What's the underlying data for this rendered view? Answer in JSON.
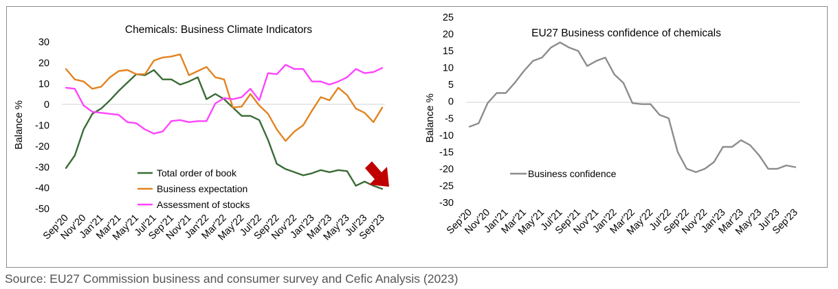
{
  "source_note": "Source: EU27 Commission business and consumer survey and Cefic Analysis (2023)",
  "chart_data": [
    {
      "type": "line",
      "title": "Chemicals: Business Climate Indicators",
      "xlabel": "",
      "ylabel": "Balance %",
      "ylim": [
        -50,
        30
      ],
      "yticks": [
        30,
        20,
        10,
        0,
        -10,
        -20,
        -30,
        -40,
        -50
      ],
      "grid": false,
      "legend_position": "bottom-center",
      "categories": [
        "Sep'20",
        "Oct'20",
        "Nov'20",
        "Dec'20",
        "Jan'21",
        "Feb'21",
        "Mar'21",
        "Apr'21",
        "May'21",
        "Jun'21",
        "Jul'21",
        "Aug'21",
        "Sep'21",
        "Oct'21",
        "Nov'21",
        "Dec'21",
        "Jan'22",
        "Feb'22",
        "Mar'22",
        "Apr'22",
        "May'22",
        "Jun'22",
        "Jul'22",
        "Aug'22",
        "Sep'22",
        "Oct'22",
        "Nov'22",
        "Dec'22",
        "Jan'23",
        "Feb'23",
        "Mar'23",
        "Apr'23",
        "May'23",
        "Jun'23",
        "Jul'23",
        "Aug'23",
        "Sep'23"
      ],
      "tick_labels": [
        "Sep'20",
        "Nov'20",
        "Jan'21",
        "Mar'21",
        "May'21",
        "Jul'21",
        "Sep'21",
        "Nov'21",
        "Jan'22",
        "Mar'22",
        "May'22",
        "Jul'22",
        "Sep'22",
        "Nov'22",
        "Jan'23",
        "Mar'23",
        "May'23",
        "Jul'23",
        "Sep'23"
      ],
      "series": [
        {
          "name": "Total order of book",
          "color": "#3a6b35",
          "values": [
            -30.5,
            -24.5,
            -12,
            -4.5,
            -2,
            2,
            6.5,
            10.5,
            14.5,
            14,
            16.5,
            12,
            12,
            9.5,
            11,
            13,
            2.5,
            5,
            2.5,
            -1.5,
            -5.5,
            -5.5,
            -7.5,
            -17,
            -28.5,
            -31,
            -32.5,
            -34,
            -33,
            -31.5,
            -32.5,
            -31.5,
            -32,
            -39,
            -37,
            -39,
            -40.5
          ]
        },
        {
          "name": "Business expectation",
          "color": "#e2831f",
          "values": [
            17,
            12,
            11,
            7.5,
            8.5,
            13,
            16,
            16.5,
            14.5,
            14.5,
            21,
            22.5,
            23,
            24,
            14,
            16,
            18,
            13,
            12,
            -1.5,
            -1,
            5,
            -0.5,
            -4.5,
            -12,
            -17.5,
            -13,
            -10,
            -3,
            3.5,
            2,
            8,
            4.5,
            -2,
            -4,
            -8.5,
            -1.5
          ]
        },
        {
          "name": "Assessment of stocks",
          "color": "#ff44ff",
          "values": [
            8,
            7.5,
            -0.5,
            -3.5,
            -4,
            -4.5,
            -5,
            -8.5,
            -9,
            -12,
            -14,
            -13,
            -8,
            -7.5,
            -8.5,
            -8,
            -8,
            0.5,
            3,
            2.5,
            3.5,
            7.5,
            2,
            15,
            14.5,
            19,
            17,
            17,
            11,
            11,
            9.5,
            11,
            13,
            17,
            15,
            15.5,
            17.5
          ]
        }
      ],
      "annotation": "red-down-arrow"
    },
    {
      "type": "line",
      "title": "EU27 Business confidence of chemicals",
      "xlabel": "",
      "ylabel": "Balance %",
      "ylim": [
        -30,
        25
      ],
      "yticks": [
        25,
        20,
        15,
        10,
        5,
        0,
        -5,
        -10,
        -15,
        -20,
        -25,
        -30
      ],
      "grid": false,
      "legend_position": "left-bottom",
      "categories": [
        "Sep'20",
        "Oct'20",
        "Nov'20",
        "Dec'20",
        "Jan'21",
        "Feb'21",
        "Mar'21",
        "Apr'21",
        "May'21",
        "Jun'21",
        "Jul'21",
        "Aug'21",
        "Sep'21",
        "Oct'21",
        "Nov'21",
        "Dec'21",
        "Jan'22",
        "Feb'22",
        "Mar'22",
        "Apr'22",
        "May'22",
        "Jun'22",
        "Jul'22",
        "Aug'22",
        "Sep'22",
        "Oct'22",
        "Nov'22",
        "Dec'22",
        "Jan'23",
        "Feb'23",
        "Mar'23",
        "Apr'23",
        "May'23",
        "Jun'23",
        "Jul'23",
        "Aug'23",
        "Sep'23"
      ],
      "tick_labels": [
        "Sep'20",
        "Nov'20",
        "Jan'21",
        "Mar'21",
        "May'21",
        "Jul'21",
        "Sep'21",
        "Nov'21",
        "Jan'22",
        "Mar'22",
        "May'22",
        "Jul'22",
        "Sep'22",
        "Nov'22",
        "Jan'23",
        "Mar'23",
        "May'23",
        "Jul'23",
        "Sep'23"
      ],
      "series": [
        {
          "name": "Business confidence",
          "color": "#8c8c8c",
          "values": [
            -7.5,
            -6.5,
            -0.5,
            2.5,
            2.5,
            5.5,
            9,
            12,
            13,
            16,
            17.5,
            16,
            15,
            10.5,
            12,
            13,
            8,
            5.5,
            -0.5,
            -0.8,
            -0.8,
            -4,
            -5,
            -15,
            -20,
            -21,
            -20,
            -18,
            -13.5,
            -13.5,
            -11.5,
            -13,
            -16,
            -20,
            -20,
            -19,
            -19.5
          ]
        }
      ]
    }
  ]
}
